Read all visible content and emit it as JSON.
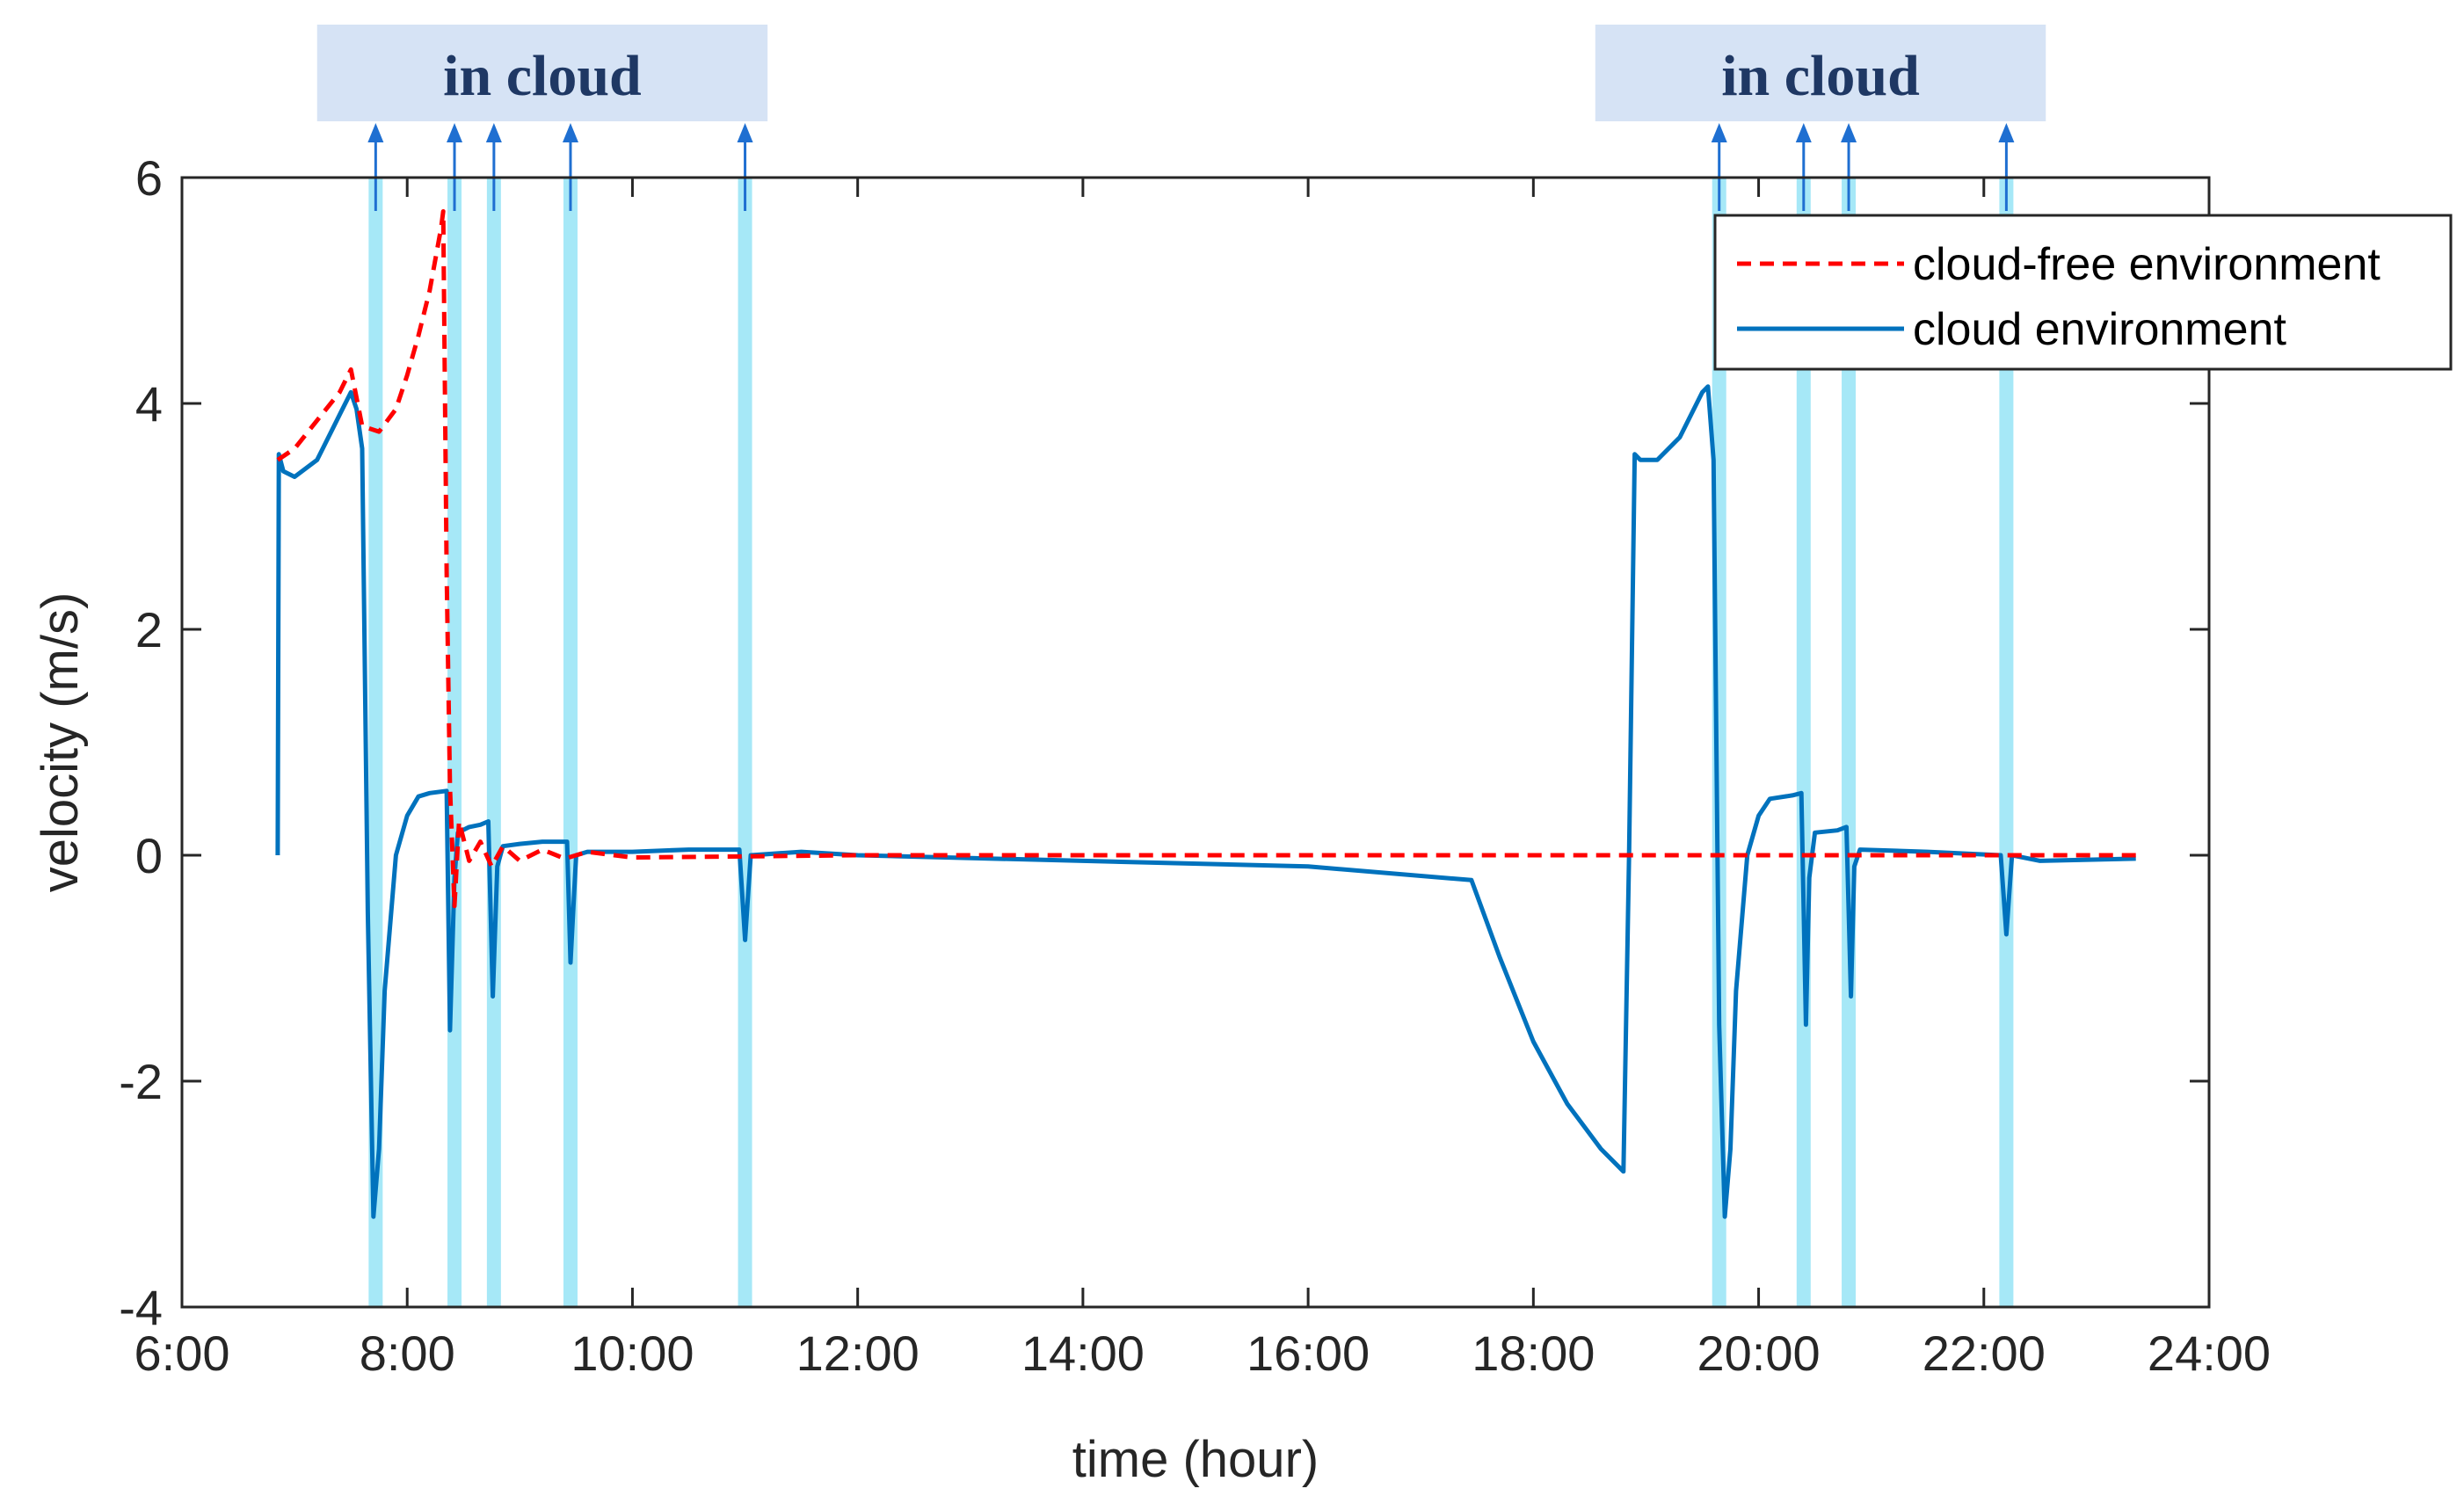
{
  "colors": {
    "cloud_free": "#ff0000",
    "cloud_env": "#0072bd",
    "cloud_band": "#a6e8f7",
    "cloud_box": "#d6e3f5",
    "cloud_text": "#1f3864",
    "arrow": "#1f6fd1"
  },
  "chart_data": {
    "type": "line",
    "xlabel": "time (hour)",
    "ylabel": "velocity (m/s)",
    "xlim": [
      6,
      24
    ],
    "ylim": [
      -4,
      6
    ],
    "x_ticks": [
      {
        "value": 6,
        "label": "6:00"
      },
      {
        "value": 8,
        "label": "8:00"
      },
      {
        "value": 10,
        "label": "10:00"
      },
      {
        "value": 12,
        "label": "12:00"
      },
      {
        "value": 14,
        "label": "14:00"
      },
      {
        "value": 16,
        "label": "16:00"
      },
      {
        "value": 18,
        "label": "18:00"
      },
      {
        "value": 20,
        "label": "20:00"
      },
      {
        "value": 22,
        "label": "22:00"
      },
      {
        "value": 24,
        "label": "24:00"
      }
    ],
    "y_ticks": [
      {
        "value": 6,
        "label": "6"
      },
      {
        "value": 4,
        "label": "4"
      },
      {
        "value": 2,
        "label": "2"
      },
      {
        "value": 0,
        "label": "0"
      },
      {
        "value": -2,
        "label": "-2"
      },
      {
        "value": -4,
        "label": "-4"
      }
    ],
    "grid": false,
    "legend_position": "top-right",
    "legend": [
      {
        "label": "cloud-free environment",
        "style": "dashed"
      },
      {
        "label": "cloud environment",
        "style": "solid"
      }
    ],
    "cloud_annotations": [
      {
        "label": "in cloud",
        "x_start": 7.2,
        "x_end": 11.2
      },
      {
        "label": "in cloud",
        "x_start": 18.55,
        "x_end": 22.55
      }
    ],
    "cloud_bands": [
      7.72,
      8.42,
      8.77,
      9.45,
      11.0,
      19.65,
      20.4,
      20.8,
      22.2
    ],
    "series": [
      {
        "name": "cloud-free environment",
        "style": "dashed",
        "points": [
          [
            6.85,
            3.5
          ],
          [
            7.0,
            3.6
          ],
          [
            7.2,
            3.85
          ],
          [
            7.4,
            4.1
          ],
          [
            7.5,
            4.3
          ],
          [
            7.6,
            3.8
          ],
          [
            7.75,
            3.75
          ],
          [
            7.9,
            3.95
          ],
          [
            8.0,
            4.25
          ],
          [
            8.1,
            4.6
          ],
          [
            8.2,
            5.0
          ],
          [
            8.3,
            5.55
          ],
          [
            8.32,
            5.7
          ],
          [
            8.35,
            2.5
          ],
          [
            8.38,
            0.6
          ],
          [
            8.42,
            -0.45
          ],
          [
            8.46,
            0.3
          ],
          [
            8.55,
            -0.05
          ],
          [
            8.65,
            0.12
          ],
          [
            8.75,
            -0.1
          ],
          [
            8.85,
            0.08
          ],
          [
            9.0,
            -0.05
          ],
          [
            9.2,
            0.05
          ],
          [
            9.4,
            -0.03
          ],
          [
            9.6,
            0.03
          ],
          [
            10.0,
            -0.02
          ],
          [
            12.0,
            0.0
          ],
          [
            16.0,
            0.0
          ],
          [
            20.0,
            0.0
          ],
          [
            22.0,
            0.0
          ],
          [
            23.35,
            0.0
          ]
        ]
      },
      {
        "name": "cloud environment",
        "style": "solid",
        "points": [
          [
            6.85,
            0.0
          ],
          [
            6.86,
            3.55
          ],
          [
            6.9,
            3.4
          ],
          [
            7.0,
            3.35
          ],
          [
            7.2,
            3.5
          ],
          [
            7.4,
            3.9
          ],
          [
            7.5,
            4.1
          ],
          [
            7.55,
            3.95
          ],
          [
            7.6,
            3.6
          ],
          [
            7.65,
            -0.5
          ],
          [
            7.7,
            -3.2
          ],
          [
            7.75,
            -2.6
          ],
          [
            7.8,
            -1.2
          ],
          [
            7.9,
            0.0
          ],
          [
            8.0,
            0.35
          ],
          [
            8.1,
            0.52
          ],
          [
            8.2,
            0.55
          ],
          [
            8.35,
            0.57
          ],
          [
            8.38,
            -1.55
          ],
          [
            8.42,
            -0.2
          ],
          [
            8.45,
            0.2
          ],
          [
            8.55,
            0.25
          ],
          [
            8.65,
            0.27
          ],
          [
            8.72,
            0.3
          ],
          [
            8.76,
            -1.25
          ],
          [
            8.8,
            -0.1
          ],
          [
            8.85,
            0.08
          ],
          [
            9.0,
            0.1
          ],
          [
            9.2,
            0.12
          ],
          [
            9.42,
            0.12
          ],
          [
            9.45,
            -0.95
          ],
          [
            9.5,
            0.0
          ],
          [
            9.6,
            0.03
          ],
          [
            10.0,
            0.03
          ],
          [
            10.5,
            0.05
          ],
          [
            10.95,
            0.05
          ],
          [
            11.0,
            -0.75
          ],
          [
            11.05,
            0.0
          ],
          [
            11.5,
            0.03
          ],
          [
            12.0,
            0.0
          ],
          [
            14.0,
            -0.05
          ],
          [
            16.0,
            -0.1
          ],
          [
            17.45,
            -0.22
          ],
          [
            17.7,
            -0.9
          ],
          [
            18.0,
            -1.65
          ],
          [
            18.3,
            -2.2
          ],
          [
            18.6,
            -2.6
          ],
          [
            18.8,
            -2.8
          ],
          [
            18.85,
            0.0
          ],
          [
            18.9,
            3.55
          ],
          [
            18.95,
            3.5
          ],
          [
            19.1,
            3.5
          ],
          [
            19.3,
            3.7
          ],
          [
            19.5,
            4.1
          ],
          [
            19.55,
            4.15
          ],
          [
            19.6,
            3.5
          ],
          [
            19.65,
            -1.5
          ],
          [
            19.7,
            -3.2
          ],
          [
            19.75,
            -2.6
          ],
          [
            19.8,
            -1.2
          ],
          [
            19.9,
            0.0
          ],
          [
            20.0,
            0.35
          ],
          [
            20.1,
            0.5
          ],
          [
            20.3,
            0.53
          ],
          [
            20.38,
            0.55
          ],
          [
            20.42,
            -1.5
          ],
          [
            20.45,
            -0.2
          ],
          [
            20.5,
            0.2
          ],
          [
            20.7,
            0.22
          ],
          [
            20.78,
            0.25
          ],
          [
            20.82,
            -1.25
          ],
          [
            20.85,
            -0.1
          ],
          [
            20.9,
            0.05
          ],
          [
            21.5,
            0.03
          ],
          [
            22.15,
            0.0
          ],
          [
            22.2,
            -0.7
          ],
          [
            22.25,
            0.0
          ],
          [
            22.5,
            -0.05
          ],
          [
            23.35,
            -0.03
          ]
        ]
      }
    ]
  }
}
